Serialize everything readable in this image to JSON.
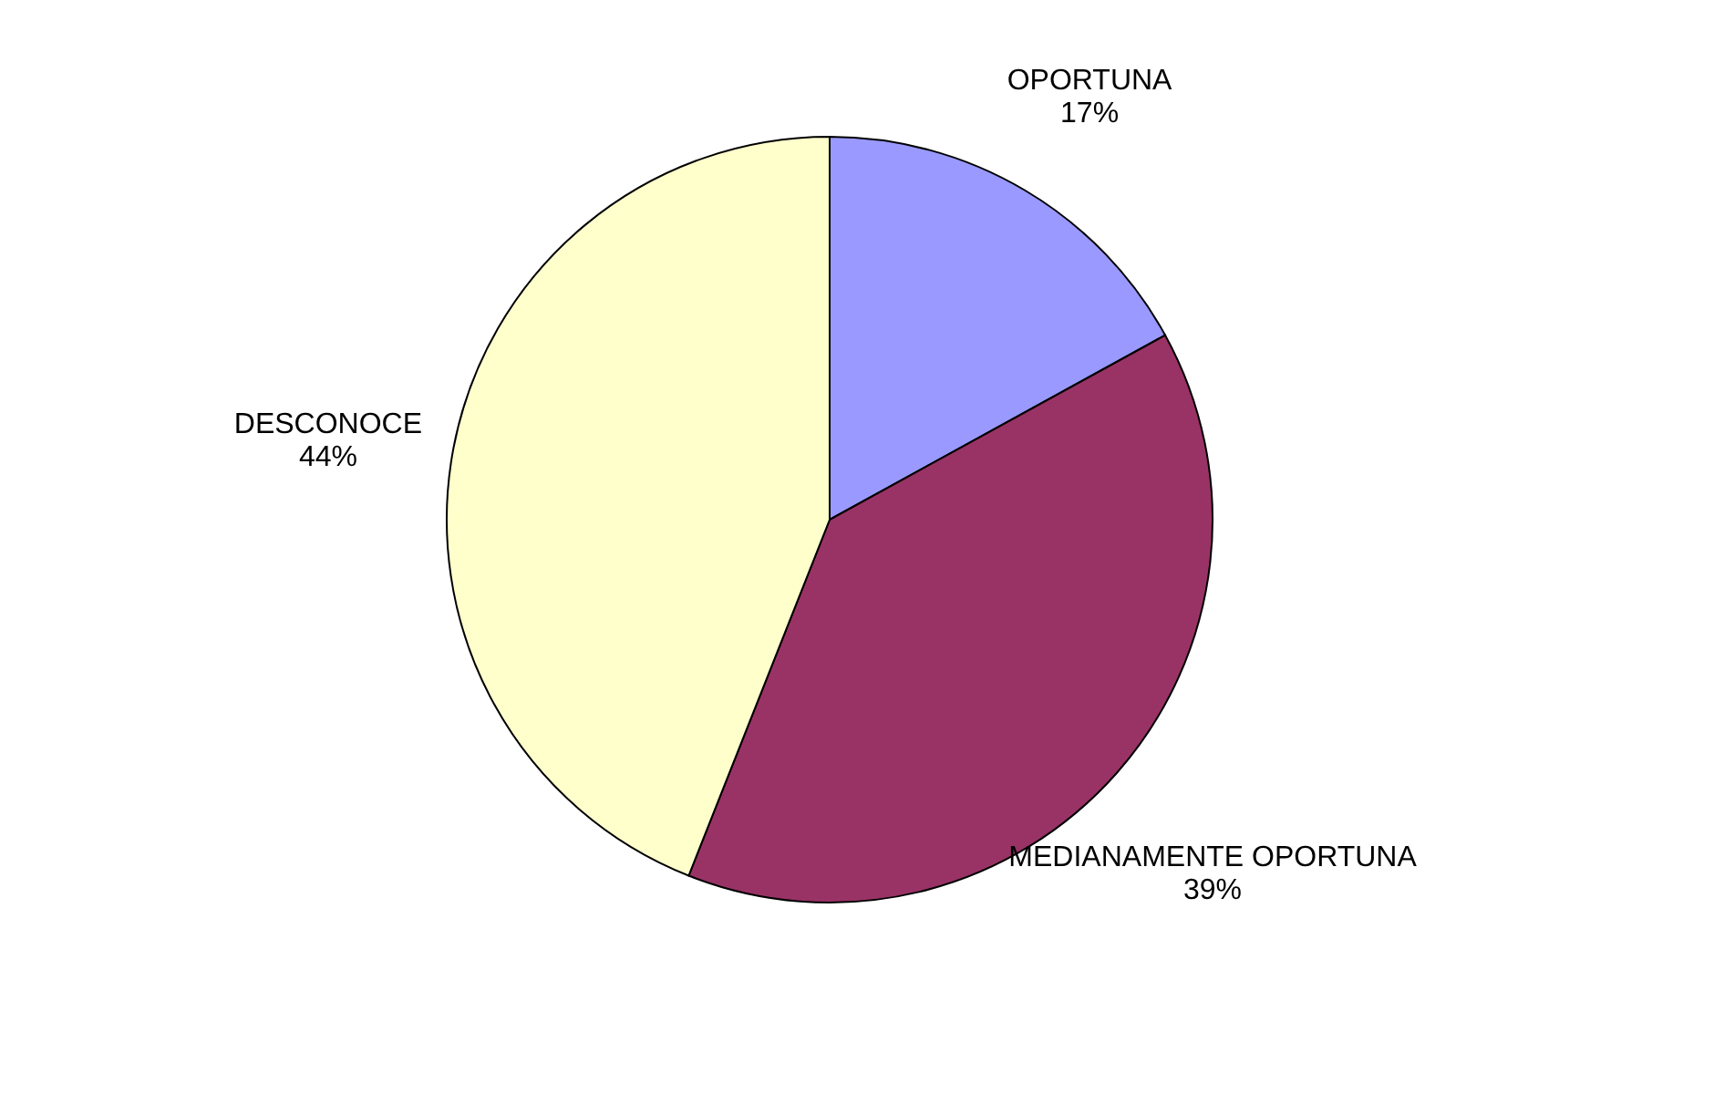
{
  "chart_data": {
    "type": "pie",
    "categories": [
      "OPORTUNA",
      "MEDIANAMENTE OPORTUNA",
      "DESCONOCE"
    ],
    "values": [
      17,
      39,
      44
    ],
    "colors": [
      "#9999ff",
      "#993366",
      "#ffffcc"
    ],
    "value_labels": [
      "17%",
      "39%",
      "44%"
    ],
    "legend": false
  }
}
